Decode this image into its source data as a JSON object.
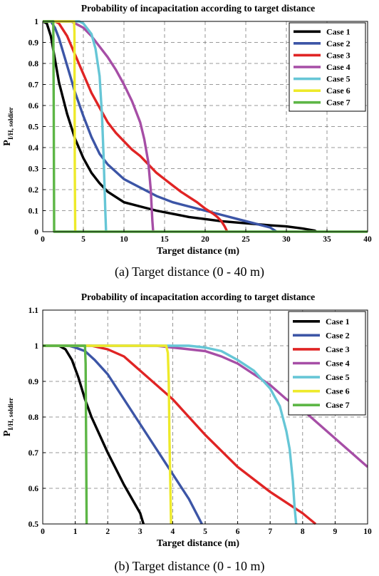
{
  "chart_data": [
    {
      "type": "line",
      "title": "Probability of incapacitation according to target distance",
      "xlabel": "Target distance (m)",
      "ylabel_main": "P",
      "ylabel_sub": "I/H, soldier",
      "xlim": [
        0,
        40
      ],
      "ylim": [
        0,
        1
      ],
      "xticks": [
        0,
        5,
        10,
        15,
        20,
        25,
        30,
        35,
        40
      ],
      "yticks": [
        0,
        0.1,
        0.2,
        0.3,
        0.4,
        0.5,
        0.6,
        0.7,
        0.8,
        0.9,
        1
      ],
      "grid": true,
      "legend_position": "top-right",
      "caption": "(a) Target distance (0 - 40 m)",
      "series": [
        {
          "name": "Case 1",
          "color": "#000000",
          "x": [
            0,
            0.5,
            1,
            1.5,
            2,
            3,
            4,
            5,
            6,
            7,
            8,
            10,
            12,
            14,
            16,
            18,
            20,
            22,
            25,
            28,
            30,
            32,
            33.5,
            33.7
          ],
          "y": [
            1,
            0.99,
            0.93,
            0.82,
            0.71,
            0.56,
            0.44,
            0.35,
            0.28,
            0.23,
            0.19,
            0.14,
            0.12,
            0.1,
            0.085,
            0.07,
            0.06,
            0.05,
            0.04,
            0.03,
            0.025,
            0.015,
            0.005,
            0
          ]
        },
        {
          "name": "Case 2",
          "color": "#3C55A6",
          "x": [
            0,
            1,
            1.5,
            2,
            3,
            4,
            5,
            6,
            7,
            8,
            10,
            12,
            14,
            16,
            18,
            20,
            22,
            24,
            26,
            28,
            28.8
          ],
          "y": [
            1,
            1,
            0.97,
            0.92,
            0.79,
            0.66,
            0.55,
            0.45,
            0.37,
            0.32,
            0.25,
            0.21,
            0.17,
            0.14,
            0.12,
            0.1,
            0.08,
            0.06,
            0.04,
            0.02,
            0
          ]
        },
        {
          "name": "Case 3",
          "color": "#E02424",
          "x": [
            0,
            1.5,
            2,
            3,
            4,
            5,
            6,
            7,
            8,
            9,
            10,
            11,
            12,
            13,
            14,
            15,
            16,
            17,
            18,
            19,
            20,
            21,
            21.5,
            22,
            22.4,
            22.6,
            22.7
          ],
          "y": [
            1,
            1,
            0.99,
            0.93,
            0.84,
            0.75,
            0.66,
            0.59,
            0.52,
            0.47,
            0.43,
            0.39,
            0.36,
            0.32,
            0.28,
            0.25,
            0.22,
            0.19,
            0.165,
            0.14,
            0.11,
            0.085,
            0.07,
            0.05,
            0.025,
            0.01,
            0
          ]
        },
        {
          "name": "Case 4",
          "color": "#A64EA6",
          "x": [
            0,
            3.5,
            4,
            5,
            6,
            7,
            8,
            9,
            10,
            11,
            12,
            12.5,
            13,
            13.3,
            13.5,
            13.6
          ],
          "y": [
            1,
            1,
            0.99,
            0.97,
            0.93,
            0.88,
            0.83,
            0.77,
            0.7,
            0.62,
            0.52,
            0.44,
            0.33,
            0.2,
            0.05,
            0
          ]
        },
        {
          "name": "Case 5",
          "color": "#66C6D6",
          "x": [
            0,
            4.5,
            5,
            6,
            6.5,
            7,
            7.3,
            7.5,
            7.7,
            7.8
          ],
          "y": [
            1,
            1,
            0.99,
            0.94,
            0.87,
            0.74,
            0.55,
            0.35,
            0.1,
            0
          ]
        },
        {
          "name": "Case 6",
          "color": "#EEEA2A",
          "x": [
            0,
            3.85,
            3.9,
            3.95,
            4.0
          ],
          "y": [
            1,
            1,
            0.95,
            0.3,
            0
          ]
        },
        {
          "name": "Case 7",
          "color": "#5DB646",
          "x": [
            0,
            1.3,
            1.35,
            1.4,
            40
          ],
          "y": [
            1,
            1,
            0.6,
            0,
            0
          ]
        }
      ]
    },
    {
      "type": "line",
      "title": "Probability of incapacitation according to target distance",
      "xlabel": "Target distance (m)",
      "ylabel_main": "P",
      "ylabel_sub": "I/H, soldier",
      "xlim": [
        0,
        10
      ],
      "ylim": [
        0.5,
        1.1
      ],
      "xticks": [
        0,
        1,
        2,
        3,
        4,
        5,
        6,
        7,
        8,
        9,
        10
      ],
      "yticks": [
        0.5,
        0.6,
        0.7,
        0.8,
        0.9,
        1,
        1.1
      ],
      "grid": true,
      "legend_position": "top-right",
      "caption": "(b) Target distance (0 - 10 m)",
      "series": [
        {
          "name": "Case 1",
          "color": "#000000",
          "x": [
            0,
            0.5,
            0.7,
            0.9,
            1.1,
            1.3,
            1.5,
            2,
            2.5,
            3,
            3.1
          ],
          "y": [
            1,
            1,
            0.99,
            0.96,
            0.91,
            0.85,
            0.8,
            0.7,
            0.61,
            0.53,
            0.5
          ]
        },
        {
          "name": "Case 2",
          "color": "#3C55A6",
          "x": [
            0,
            0.8,
            1,
            1.3,
            1.6,
            2,
            2.5,
            3,
            3.5,
            4,
            4.5,
            4.9
          ],
          "y": [
            1,
            1,
            0.995,
            0.985,
            0.96,
            0.92,
            0.85,
            0.78,
            0.71,
            0.64,
            0.57,
            0.5
          ]
        },
        {
          "name": "Case 3",
          "color": "#E02424",
          "x": [
            0,
            1.5,
            2,
            2.5,
            3,
            3.5,
            4,
            5,
            6,
            7,
            8,
            8.4
          ],
          "y": [
            1,
            1,
            0.99,
            0.97,
            0.93,
            0.89,
            0.85,
            0.75,
            0.66,
            0.59,
            0.53,
            0.5
          ]
        },
        {
          "name": "Case 4",
          "color": "#A64EA6",
          "x": [
            0,
            3.5,
            4,
            5,
            5.5,
            6,
            6.5,
            7,
            7.5,
            8,
            8.5,
            9,
            9.5,
            10
          ],
          "y": [
            1,
            1,
            0.995,
            0.985,
            0.97,
            0.95,
            0.92,
            0.89,
            0.85,
            0.82,
            0.78,
            0.74,
            0.7,
            0.66
          ]
        },
        {
          "name": "Case 5",
          "color": "#66C6D6",
          "x": [
            0,
            4.5,
            5,
            5.5,
            6,
            6.5,
            7,
            7.3,
            7.5,
            7.6,
            7.7,
            7.75,
            7.8
          ],
          "y": [
            1,
            1,
            0.995,
            0.985,
            0.96,
            0.93,
            0.88,
            0.83,
            0.76,
            0.71,
            0.62,
            0.55,
            0.5
          ]
        },
        {
          "name": "Case 6",
          "color": "#EEEA2A",
          "x": [
            0,
            3.8,
            3.85,
            3.88,
            3.9,
            3.95
          ],
          "y": [
            1,
            1,
            0.98,
            0.9,
            0.75,
            0.5
          ]
        },
        {
          "name": "Case 7",
          "color": "#5DB646",
          "x": [
            0,
            1.3,
            1.32,
            1.35
          ],
          "y": [
            1,
            1,
            0.95,
            0.5
          ]
        }
      ]
    }
  ]
}
